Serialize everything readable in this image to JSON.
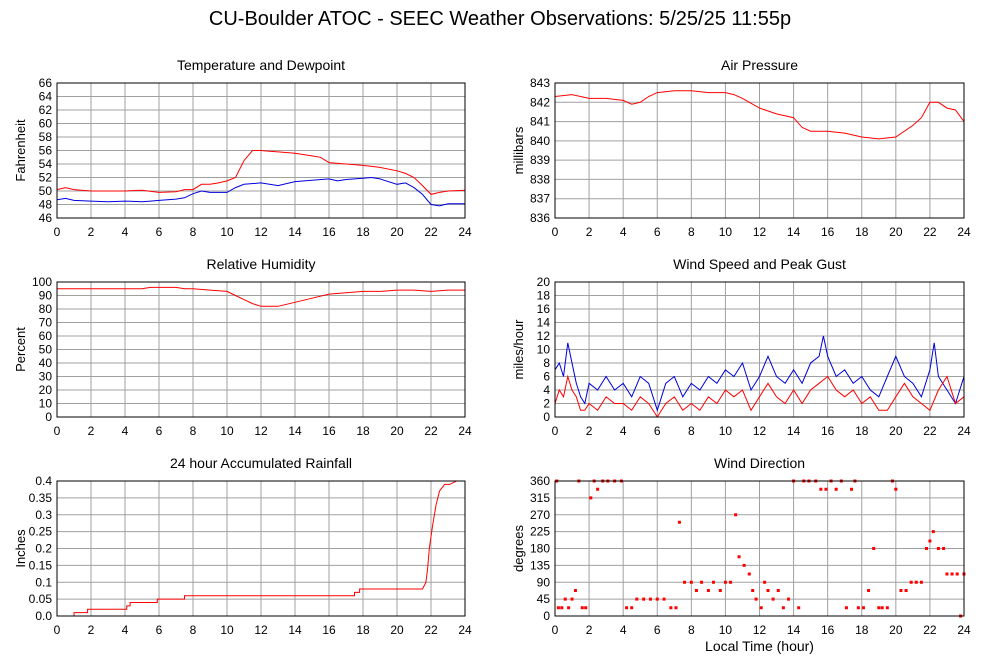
{
  "page_title": "CU-Boulder ATOC - SEEC Weather Observations: 5/25/25 11:55p",
  "colors": {
    "red": "#ff0000",
    "blue": "#0000dd",
    "grid": "#a0a0a0"
  },
  "chart_data": [
    {
      "id": "temp",
      "type": "line",
      "title": "Temperature and Dewpoint",
      "ylabel": "Fahrenheit",
      "xlabel": "",
      "xlim": [
        0,
        24
      ],
      "ylim": [
        46,
        66
      ],
      "yticks": [
        46,
        48,
        50,
        52,
        54,
        56,
        58,
        60,
        62,
        64,
        66
      ],
      "xticks": [
        0,
        2,
        4,
        6,
        8,
        10,
        12,
        14,
        16,
        18,
        20,
        22,
        24
      ],
      "grid": true,
      "series": [
        {
          "color": "#ff0000",
          "x": [
            0,
            0.5,
            1,
            2,
            3,
            4,
            5,
            6,
            7,
            7.5,
            8,
            8.5,
            9,
            9.5,
            10,
            10.5,
            11,
            11.5,
            12,
            12.5,
            13,
            14,
            15,
            15.5,
            16,
            17,
            18,
            19,
            20,
            20.5,
            21,
            21.5,
            22,
            22.5,
            23,
            24
          ],
          "y": [
            50.2,
            50.5,
            50.2,
            50.0,
            50.0,
            50.0,
            50.1,
            49.8,
            49.9,
            50.2,
            50.2,
            51.0,
            51.0,
            51.2,
            51.5,
            52.0,
            54.5,
            56.0,
            56.0,
            55.9,
            55.8,
            55.6,
            55.2,
            55.0,
            54.2,
            54.0,
            53.8,
            53.5,
            53.0,
            52.6,
            52.0,
            50.8,
            49.5,
            49.8,
            50.0,
            50.1
          ]
        },
        {
          "color": "#0000dd",
          "x": [
            0,
            0.5,
            1,
            2,
            3,
            4,
            5,
            5.5,
            6,
            7,
            7.5,
            8,
            8.5,
            9,
            10,
            10.5,
            11,
            12,
            13,
            14,
            15,
            16,
            16.5,
            17,
            18,
            18.5,
            19,
            20,
            20.5,
            21,
            21.5,
            22,
            22.5,
            23,
            24
          ],
          "y": [
            48.7,
            48.9,
            48.6,
            48.5,
            48.4,
            48.5,
            48.4,
            48.5,
            48.6,
            48.8,
            49.0,
            49.6,
            50.0,
            49.8,
            49.8,
            50.5,
            51.0,
            51.2,
            50.8,
            51.4,
            51.6,
            51.8,
            51.5,
            51.7,
            51.9,
            52.0,
            51.8,
            51.0,
            51.2,
            50.5,
            49.5,
            48.0,
            47.8,
            48.1,
            48.1
          ]
        }
      ]
    },
    {
      "id": "pressure",
      "type": "line",
      "title": "Air Pressure",
      "ylabel": "millibars",
      "xlabel": "",
      "xlim": [
        0,
        24
      ],
      "ylim": [
        836,
        843
      ],
      "yticks": [
        836,
        837,
        838,
        839,
        840,
        841,
        842,
        843
      ],
      "xticks": [
        0,
        2,
        4,
        6,
        8,
        10,
        12,
        14,
        16,
        18,
        20,
        22,
        24
      ],
      "grid": true,
      "series": [
        {
          "color": "#ff0000",
          "x": [
            0,
            1,
            2,
            3,
            4,
            4.5,
            5,
            5.5,
            6,
            7,
            8,
            9,
            10,
            10.5,
            11,
            12,
            13,
            14,
            14.5,
            15,
            16,
            17,
            18,
            19,
            20,
            21,
            21.5,
            22,
            22.5,
            23,
            23.5,
            24
          ],
          "y": [
            842.3,
            842.4,
            842.2,
            842.2,
            842.1,
            841.9,
            842.0,
            842.3,
            842.5,
            842.6,
            842.6,
            842.5,
            842.5,
            842.4,
            842.2,
            841.7,
            841.4,
            841.2,
            840.7,
            840.5,
            840.5,
            840.4,
            840.2,
            840.1,
            840.2,
            840.8,
            841.2,
            842.0,
            842.0,
            841.7,
            841.6,
            841.0
          ]
        }
      ]
    },
    {
      "id": "humidity",
      "type": "line",
      "title": "Relative Humidity",
      "ylabel": "Percent",
      "xlabel": "",
      "xlim": [
        0,
        24
      ],
      "ylim": [
        0,
        100
      ],
      "yticks": [
        0,
        10,
        20,
        30,
        40,
        50,
        60,
        70,
        80,
        90,
        100
      ],
      "xticks": [
        0,
        2,
        4,
        6,
        8,
        10,
        12,
        14,
        16,
        18,
        20,
        22,
        24
      ],
      "grid": true,
      "series": [
        {
          "color": "#ff0000",
          "x": [
            0,
            1,
            2,
            3,
            4,
            5,
            5.5,
            6,
            7,
            7.5,
            8,
            9,
            10,
            10.5,
            11,
            11.5,
            12,
            13,
            14,
            15,
            16,
            17,
            18,
            19,
            20,
            21,
            22,
            23,
            24
          ],
          "y": [
            95,
            95,
            95,
            95,
            95,
            95,
            96,
            96,
            96,
            95,
            95,
            94,
            93,
            90,
            87,
            84,
            82,
            82,
            85,
            88,
            91,
            92,
            93,
            93,
            94,
            94,
            93,
            94,
            94
          ]
        }
      ]
    },
    {
      "id": "wind-speed",
      "type": "line",
      "title": "Wind Speed and Peak Gust",
      "ylabel": "miles/hour",
      "xlabel": "",
      "xlim": [
        0,
        24
      ],
      "ylim": [
        0,
        20
      ],
      "yticks": [
        0,
        2,
        4,
        6,
        8,
        10,
        12,
        14,
        16,
        18,
        20
      ],
      "xticks": [
        0,
        2,
        4,
        6,
        8,
        10,
        12,
        14,
        16,
        18,
        20,
        22,
        24
      ],
      "grid": true,
      "series": [
        {
          "color": "#0000dd",
          "x": [
            0,
            0.25,
            0.5,
            0.75,
            1,
            1.25,
            1.5,
            1.75,
            2,
            2.5,
            3,
            3.5,
            4,
            4.5,
            5,
            5.5,
            6,
            6.5,
            7,
            7.5,
            8,
            8.5,
            9,
            9.5,
            10,
            10.5,
            11,
            11.5,
            12,
            12.5,
            13,
            13.5,
            14,
            14.5,
            15,
            15.5,
            15.75,
            16,
            16.5,
            17,
            17.5,
            18,
            18.5,
            19,
            19.5,
            20,
            20.5,
            21,
            21.5,
            22,
            22.25,
            22.5,
            23,
            23.5,
            24
          ],
          "y": [
            7,
            8,
            6,
            11,
            8,
            5,
            3,
            2,
            5,
            4,
            6,
            4,
            5,
            3,
            6,
            5,
            1,
            5,
            6,
            3,
            5,
            4,
            6,
            5,
            7,
            6,
            8,
            4,
            6,
            9,
            6,
            5,
            7,
            5,
            8,
            9,
            12,
            9,
            6,
            7,
            5,
            6,
            4,
            3,
            6,
            9,
            6,
            5,
            3,
            7,
            11,
            6,
            4,
            2,
            6
          ]
        },
        {
          "color": "#ff0000",
          "x": [
            0,
            0.25,
            0.5,
            0.75,
            1,
            1.25,
            1.5,
            1.75,
            2,
            2.5,
            3,
            3.5,
            4,
            4.5,
            5,
            5.5,
            6,
            6.5,
            7,
            7.5,
            8,
            8.5,
            9,
            9.5,
            10,
            10.5,
            11,
            11.5,
            12,
            12.5,
            13,
            13.5,
            14,
            14.5,
            15,
            15.5,
            16,
            16.5,
            17,
            17.5,
            18,
            18.5,
            19,
            19.5,
            20,
            20.5,
            21,
            21.5,
            22,
            22.5,
            23,
            23.5,
            24
          ],
          "y": [
            2,
            4,
            3,
            6,
            4,
            3,
            1,
            1,
            2,
            1,
            3,
            2,
            2,
            1,
            3,
            2,
            0,
            2,
            3,
            1,
            2,
            1,
            3,
            2,
            4,
            3,
            4,
            1,
            3,
            5,
            3,
            2,
            4,
            2,
            4,
            5,
            6,
            4,
            3,
            4,
            2,
            3,
            1,
            1,
            3,
            5,
            3,
            2,
            1,
            4,
            6,
            2,
            3
          ]
        }
      ]
    },
    {
      "id": "rainfall",
      "type": "line",
      "title": "24 hour Accumulated Rainfall",
      "ylabel": "Inches",
      "xlabel": "",
      "xlim": [
        0,
        24
      ],
      "ylim": [
        0,
        0.4
      ],
      "yticks": [
        0.0,
        0.05,
        0.1,
        0.15,
        0.2,
        0.25,
        0.3,
        0.35,
        0.4
      ],
      "ytick_labels": [
        "0.0",
        "0.05",
        "0.1",
        "0.15",
        "0.2",
        "0.25",
        "0.3",
        "0.35",
        "0.4"
      ],
      "xticks": [
        0,
        2,
        4,
        6,
        8,
        10,
        12,
        14,
        16,
        18,
        20,
        22,
        24
      ],
      "grid": true,
      "series": [
        {
          "color": "#ff0000",
          "x": [
            0,
            1.0,
            1.0,
            1.8,
            1.8,
            4.1,
            4.1,
            4.3,
            4.3,
            5.9,
            5.9,
            7.5,
            7.5,
            17.5,
            17.5,
            17.8,
            17.8,
            21.5,
            21.7,
            21.8,
            21.9,
            22.1,
            22.3,
            22.5,
            22.8,
            23.1,
            23.5,
            24
          ],
          "y": [
            0,
            0,
            0.01,
            0.01,
            0.02,
            0.02,
            0.03,
            0.03,
            0.04,
            0.04,
            0.05,
            0.05,
            0.06,
            0.06,
            0.07,
            0.07,
            0.08,
            0.08,
            0.1,
            0.14,
            0.2,
            0.27,
            0.33,
            0.37,
            0.39,
            0.39,
            0.4,
            0.4
          ]
        }
      ]
    },
    {
      "id": "wind-direction",
      "type": "scatter",
      "title": "Wind Direction",
      "ylabel": "degrees",
      "xlabel": "Local Time (hour)",
      "xlim": [
        0,
        24
      ],
      "ylim": [
        0,
        360
      ],
      "yticks": [
        0,
        45,
        90,
        135,
        180,
        225,
        270,
        315,
        360
      ],
      "xticks": [
        0,
        2,
        4,
        6,
        8,
        10,
        12,
        14,
        16,
        18,
        20,
        22,
        24
      ],
      "grid": true,
      "series": [
        {
          "color": "#ff0000",
          "points": [
            [
              0.1,
              360
            ],
            [
              0.2,
              22
            ],
            [
              0.4,
              22
            ],
            [
              0.6,
              45
            ],
            [
              0.8,
              22
            ],
            [
              1.0,
              45
            ],
            [
              1.2,
              68
            ],
            [
              1.4,
              360
            ],
            [
              1.6,
              22
            ],
            [
              1.8,
              22
            ],
            [
              2.1,
              315
            ],
            [
              2.3,
              360
            ],
            [
              2.5,
              338
            ],
            [
              2.8,
              360
            ],
            [
              3.1,
              360
            ],
            [
              3.5,
              360
            ],
            [
              3.9,
              360
            ],
            [
              4.2,
              22
            ],
            [
              4.5,
              22
            ],
            [
              4.8,
              45
            ],
            [
              5.2,
              45
            ],
            [
              5.6,
              45
            ],
            [
              6.0,
              45
            ],
            [
              6.4,
              45
            ],
            [
              6.8,
              22
            ],
            [
              7.1,
              22
            ],
            [
              7.3,
              250
            ],
            [
              7.6,
              90
            ],
            [
              8.0,
              90
            ],
            [
              8.3,
              68
            ],
            [
              8.6,
              90
            ],
            [
              9.0,
              68
            ],
            [
              9.3,
              90
            ],
            [
              9.7,
              68
            ],
            [
              10.0,
              90
            ],
            [
              10.3,
              90
            ],
            [
              10.6,
              270
            ],
            [
              10.8,
              158
            ],
            [
              11.1,
              135
            ],
            [
              11.4,
              112
            ],
            [
              11.6,
              68
            ],
            [
              11.8,
              45
            ],
            [
              12.1,
              22
            ],
            [
              12.3,
              90
            ],
            [
              12.5,
              68
            ],
            [
              12.8,
              45
            ],
            [
              13.1,
              68
            ],
            [
              13.4,
              22
            ],
            [
              13.7,
              45
            ],
            [
              14.0,
              360
            ],
            [
              14.3,
              22
            ],
            [
              14.6,
              360
            ],
            [
              14.9,
              360
            ],
            [
              15.3,
              360
            ],
            [
              15.6,
              338
            ],
            [
              15.9,
              338
            ],
            [
              16.2,
              360
            ],
            [
              16.5,
              338
            ],
            [
              16.8,
              360
            ],
            [
              17.1,
              22
            ],
            [
              17.4,
              338
            ],
            [
              17.6,
              360
            ],
            [
              17.8,
              22
            ],
            [
              18.1,
              22
            ],
            [
              18.4,
              68
            ],
            [
              18.7,
              180
            ],
            [
              19.0,
              22
            ],
            [
              19.2,
              22
            ],
            [
              19.5,
              22
            ],
            [
              19.8,
              360
            ],
            [
              20.0,
              338
            ],
            [
              20.3,
              68
            ],
            [
              20.6,
              68
            ],
            [
              20.9,
              90
            ],
            [
              21.2,
              90
            ],
            [
              21.5,
              90
            ],
            [
              21.8,
              180
            ],
            [
              22.0,
              200
            ],
            [
              22.2,
              225
            ],
            [
              22.5,
              180
            ],
            [
              22.8,
              180
            ],
            [
              23.0,
              112
            ],
            [
              23.3,
              112
            ],
            [
              23.6,
              112
            ],
            [
              23.8,
              0
            ],
            [
              24.0,
              112
            ]
          ]
        }
      ]
    }
  ]
}
